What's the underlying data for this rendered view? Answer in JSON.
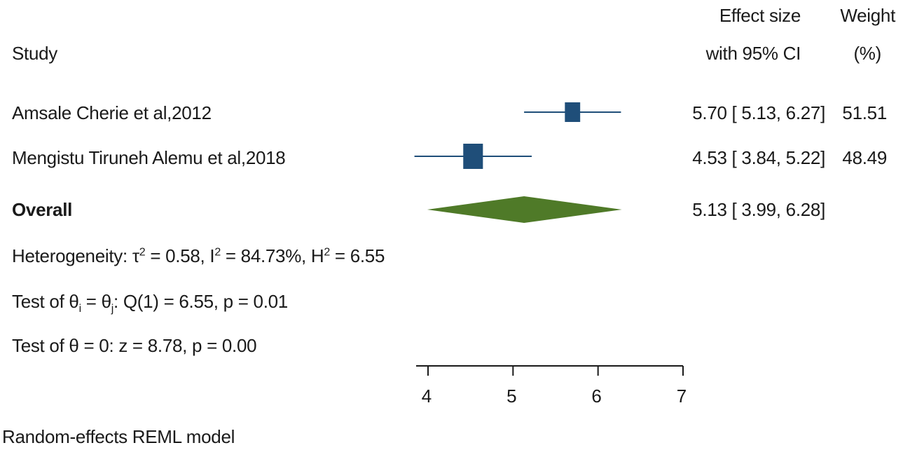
{
  "headers": {
    "study": "Study",
    "effect_line1": "Effect size",
    "effect_line2": "with 95% CI",
    "weight_line1": "Weight",
    "weight_line2": "(%)"
  },
  "stats": {
    "het_prefix": "Heterogeneity: τ",
    "het_tau_sup": "2",
    "het_mid1": " = 0.58, I",
    "het_i_sup": "2",
    "het_mid2": " = 84.73%, H",
    "het_h_sup": "2",
    "het_end": " = 6.55",
    "test1_prefix": "Test of θ",
    "test1_i": "i",
    "test1_eq": " = θ",
    "test1_j": "j",
    "test1_end": ": Q(1) = 6.55, p = 0.01",
    "test2": "Test of θ = 0: z = 8.78, p = 0.00"
  },
  "footer": "Random-effects REML model",
  "colors": {
    "study_box": "#1f4e79",
    "study_line": "#1f4e79",
    "overall_diamond": "#4f7a28",
    "text": "#1a1a1a"
  },
  "chart_data": {
    "type": "forest",
    "x_ticks": [
      4,
      5,
      6,
      7
    ],
    "xlim": [
      4,
      7
    ],
    "studies": [
      {
        "label": "Amsale Cherie et al,2012",
        "effect": 5.7,
        "ci_low": 5.13,
        "ci_high": 6.27,
        "ci_text": "5.70 [ 5.13,  6.27]",
        "weight": 51.51,
        "weight_text": "51.51"
      },
      {
        "label": "Mengistu Tiruneh Alemu et al,2018",
        "effect": 4.53,
        "ci_low": 3.84,
        "ci_high": 5.22,
        "ci_text": "4.53 [ 3.84,  5.22]",
        "weight": 48.49,
        "weight_text": "48.49"
      }
    ],
    "overall": {
      "label": "Overall",
      "effect": 5.13,
      "ci_low": 3.99,
      "ci_high": 6.28,
      "ci_text": "5.13 [ 3.99,  6.28]"
    }
  }
}
